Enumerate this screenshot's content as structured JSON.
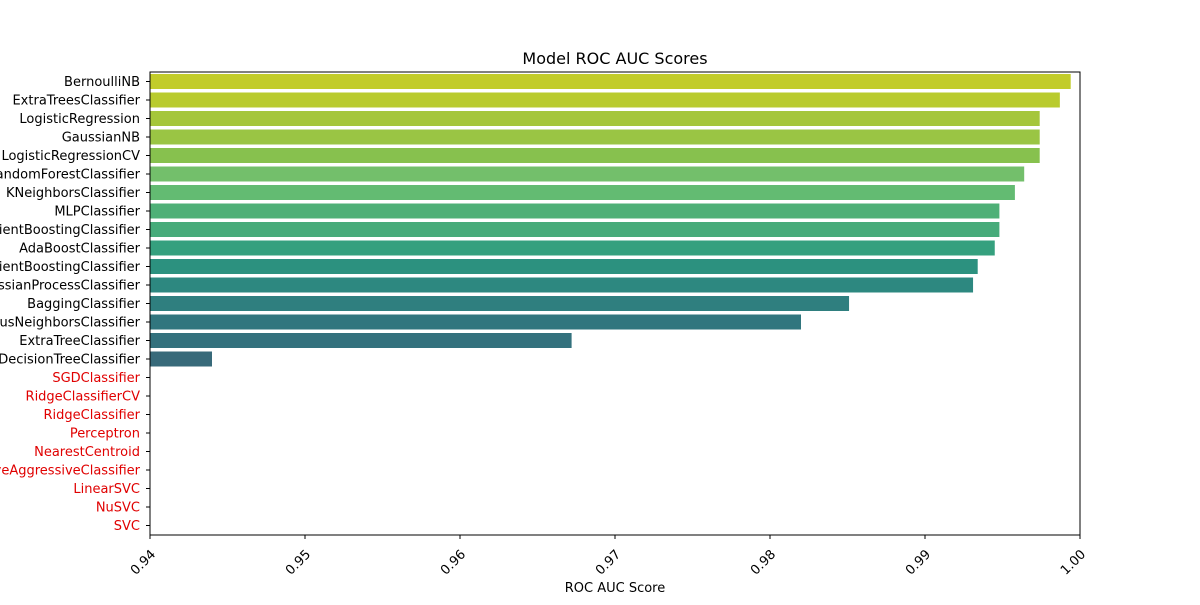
{
  "chart_data": {
    "type": "bar",
    "orientation": "horizontal",
    "title": "Model ROC AUC Scores",
    "xlabel": "ROC AUC Score",
    "ylabel": "",
    "xlim": [
      0.94,
      1.0
    ],
    "xticks": [
      "0.94",
      "0.95",
      "0.96",
      "0.97",
      "0.98",
      "0.99",
      "1.00"
    ],
    "xtick_values": [
      0.94,
      0.95,
      0.96,
      0.97,
      0.98,
      0.99,
      1.0
    ],
    "grid": false,
    "categories": [
      "BernoulliNB",
      "ExtraTreesClassifier",
      "LogisticRegression",
      "GaussianNB",
      "LogisticRegressionCV",
      "RandomForestClassifier",
      "KNeighborsClassifier",
      "MLPClassifier",
      "GradientBoostingClassifier",
      "AdaBoostClassifier",
      "HistGradientBoostingClassifier",
      "GaussianProcessClassifier",
      "BaggingClassifier",
      "RadiusNeighborsClassifier",
      "ExtraTreeClassifier",
      "DecisionTreeClassifier",
      "SGDClassifier",
      "RidgeClassifierCV",
      "RidgeClassifier",
      "Perceptron",
      "NearestCentroid",
      "PassiveAggressiveClassifier",
      "LinearSVC",
      "NuSVC",
      "SVC"
    ],
    "values": [
      0.9994,
      0.9987,
      0.9974,
      0.9974,
      0.9974,
      0.9964,
      0.9958,
      0.9948,
      0.9948,
      0.9945,
      0.9934,
      0.9931,
      0.9851,
      0.982,
      0.9672,
      0.944,
      null,
      null,
      null,
      null,
      null,
      null,
      null,
      null,
      null
    ],
    "bar_colors": [
      "#c2cc2a",
      "#b9cb2d",
      "#a5c63b",
      "#9ac544",
      "#87c14e",
      "#73bf6b",
      "#63bb72",
      "#4fb077",
      "#47ab7a",
      "#35a07e",
      "#2c917f",
      "#2d8880",
      "#2f7f7f",
      "#31767e",
      "#33717d",
      "#386a7a",
      null,
      null,
      null,
      null,
      null,
      null,
      null,
      null,
      null
    ],
    "label_colors": {
      "normal": "#000000",
      "no_score": "#e00000"
    }
  }
}
